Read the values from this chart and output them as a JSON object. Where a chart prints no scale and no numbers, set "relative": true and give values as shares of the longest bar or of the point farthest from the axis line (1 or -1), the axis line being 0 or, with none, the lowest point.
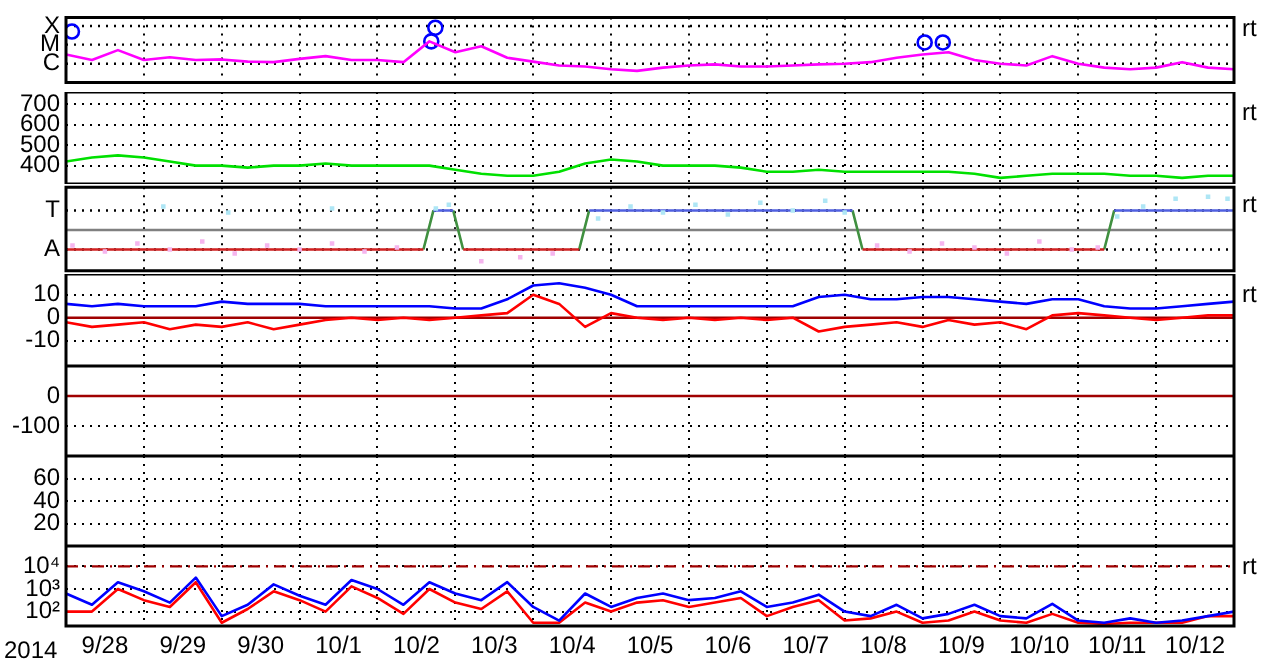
{
  "chart_data": [
    {
      "type": "line",
      "xlim": [
        "2014-09-28",
        "2014-10-13"
      ],
      "xticks": [
        {
          "value": "2014-09-28",
          "label": null
        },
        {
          "value": "2014-09-29",
          "label": null
        },
        {
          "value": "2014-09-30",
          "label": null
        },
        {
          "value": "2014-10-01",
          "label": null
        },
        {
          "value": "2014-10-02",
          "label": null
        },
        {
          "value": "2014-10-03",
          "label": null
        },
        {
          "value": "2014-10-04",
          "label": null
        },
        {
          "value": "2014-10-05",
          "label": null
        },
        {
          "value": "2014-10-06",
          "label": null
        },
        {
          "value": "2014-10-07",
          "label": null
        },
        {
          "value": "2014-10-08",
          "label": null
        },
        {
          "value": "2014-10-09",
          "label": null
        },
        {
          "value": "2014-10-10",
          "label": null
        },
        {
          "value": "2014-10-11",
          "label": null
        },
        {
          "value": "2014-10-12",
          "label": null
        },
        {
          "value": "2014-10-13",
          "label": null
        }
      ],
      "relative": true,
      "grid": "x",
      "tick_labels": "y",
      "annotations": [
        "rt"
      ],
      "ref_lines": [
        {
          "axis": "y",
          "value": 1.03,
          "label": "X",
          "color": "#000000",
          "line_style": "dotted"
        },
        {
          "axis": "y",
          "value": 0.69,
          "label": "M",
          "color": "#000000",
          "line_style": "dotted"
        },
        {
          "axis": "y",
          "value": 0.34,
          "label": "C",
          "color": "#000000",
          "line_style": "dotted"
        }
      ],
      "x": [
        "2014-09-28T00:00",
        "2014-09-28T08:00",
        "2014-09-28T16:00",
        "2014-09-29T00:00",
        "2014-09-29T08:00",
        "2014-09-29T16:00",
        "2014-09-30T00:00",
        "2014-09-30T08:00",
        "2014-09-30T16:00",
        "2014-10-01T00:00",
        "2014-10-01T08:00",
        "2014-10-01T16:00",
        "2014-10-02T00:00",
        "2014-10-02T08:00",
        "2014-10-02T16:00",
        "2014-10-03T00:00",
        "2014-10-03T08:00",
        "2014-10-03T16:00",
        "2014-10-04T00:00",
        "2014-10-04T08:00",
        "2014-10-04T16:00",
        "2014-10-05T00:00",
        "2014-10-05T08:00",
        "2014-10-05T16:00",
        "2014-10-06T00:00",
        "2014-10-06T08:00",
        "2014-10-06T16:00",
        "2014-10-07T00:00",
        "2014-10-07T08:00",
        "2014-10-07T16:00",
        "2014-10-08T00:00",
        "2014-10-08T08:00",
        "2014-10-08T16:00",
        "2014-10-09T00:00",
        "2014-10-09T08:00",
        "2014-10-09T16:00",
        "2014-10-10T00:00",
        "2014-10-10T08:00",
        "2014-10-10T16:00",
        "2014-10-11T00:00",
        "2014-10-11T08:00",
        "2014-10-11T16:00",
        "2014-10-12T00:00",
        "2014-10-12T08:00",
        "2014-10-12T16:00",
        "2014-10-13T00:00"
      ],
      "series": [
        {
          "type": "line",
          "color": "#ff00ff",
          "values": [
            0.51,
            0.41,
            0.59,
            0.41,
            0.46,
            0.41,
            0.42,
            0.38,
            0.37,
            0.43,
            0.48,
            0.41,
            0.41,
            0.37,
            0.75,
            0.55,
            0.66,
            0.45,
            0.38,
            0.31,
            0.29,
            0.24,
            0.21,
            0.27,
            0.31,
            0.33,
            0.29,
            0.29,
            0.31,
            0.33,
            0.34,
            0.37,
            0.45,
            0.51,
            0.55,
            0.41,
            0.34,
            0.31,
            0.48,
            0.34,
            0.27,
            0.24,
            0.27,
            0.37,
            0.27,
            0.24
          ]
        },
        {
          "type": "scatter",
          "color": "#0000ff",
          "marker": "circle",
          "x": [
            "2014-09-28T01:50",
            "2014-10-02T16:35",
            "2014-10-02T17:50",
            "2014-10-09T00:40",
            "2014-10-09T06:15"
          ],
          "values": [
            0.93,
            0.75,
            1,
            0.73,
            0.73
          ]
        }
      ]
    },
    {
      "type": "line",
      "xlim": [
        "2014-09-28",
        "2014-10-13"
      ],
      "xticks": [
        {
          "value": "2014-09-28",
          "label": null
        },
        {
          "value": "2014-09-29",
          "label": null
        },
        {
          "value": "2014-09-30",
          "label": null
        },
        {
          "value": "2014-10-01",
          "label": null
        },
        {
          "value": "2014-10-02",
          "label": null
        },
        {
          "value": "2014-10-03",
          "label": null
        },
        {
          "value": "2014-10-04",
          "label": null
        },
        {
          "value": "2014-10-05",
          "label": null
        },
        {
          "value": "2014-10-06",
          "label": null
        },
        {
          "value": "2014-10-07",
          "label": null
        },
        {
          "value": "2014-10-08",
          "label": null
        },
        {
          "value": "2014-10-09",
          "label": null
        },
        {
          "value": "2014-10-10",
          "label": null
        },
        {
          "value": "2014-10-11",
          "label": null
        },
        {
          "value": "2014-10-12",
          "label": null
        },
        {
          "value": "2014-10-13",
          "label": null
        }
      ],
      "ylim": [
        310,
        760
      ],
      "yticks": [
        700,
        600,
        500,
        400
      ],
      "grid": true,
      "tick_labels": "y",
      "annotations": [
        "rt"
      ],
      "x": [
        "2014-09-28T00:00",
        "2014-09-28T08:00",
        "2014-09-28T16:00",
        "2014-09-29T00:00",
        "2014-09-29T08:00",
        "2014-09-29T16:00",
        "2014-09-30T00:00",
        "2014-09-30T08:00",
        "2014-09-30T16:00",
        "2014-10-01T00:00",
        "2014-10-01T08:00",
        "2014-10-01T16:00",
        "2014-10-02T00:00",
        "2014-10-02T08:00",
        "2014-10-02T16:00",
        "2014-10-03T00:00",
        "2014-10-03T08:00",
        "2014-10-03T16:00",
        "2014-10-04T00:00",
        "2014-10-04T08:00",
        "2014-10-04T16:00",
        "2014-10-05T00:00",
        "2014-10-05T08:00",
        "2014-10-05T16:00",
        "2014-10-06T00:00",
        "2014-10-06T08:00",
        "2014-10-06T16:00",
        "2014-10-07T00:00",
        "2014-10-07T08:00",
        "2014-10-07T16:00",
        "2014-10-08T00:00",
        "2014-10-08T08:00",
        "2014-10-08T16:00",
        "2014-10-09T00:00",
        "2014-10-09T08:00",
        "2014-10-09T16:00",
        "2014-10-10T00:00",
        "2014-10-10T08:00",
        "2014-10-10T16:00",
        "2014-10-11T00:00",
        "2014-10-11T08:00",
        "2014-10-11T16:00",
        "2014-10-12T00:00",
        "2014-10-12T08:00",
        "2014-10-12T16:00",
        "2014-10-13T00:00"
      ],
      "series": [
        {
          "type": "line",
          "color": "#00e000",
          "values": [
            420,
            440,
            450,
            440,
            420,
            400,
            400,
            390,
            400,
            400,
            410,
            400,
            400,
            400,
            400,
            380,
            360,
            350,
            350,
            370,
            410,
            430,
            420,
            400,
            400,
            400,
            390,
            370,
            370,
            380,
            370,
            370,
            370,
            370,
            370,
            360,
            340,
            350,
            360,
            360,
            360,
            350,
            350,
            340,
            350,
            350
          ]
        }
      ]
    },
    {
      "type": "line",
      "xlim": [
        "2014-09-28",
        "2014-10-13"
      ],
      "xticks": [
        {
          "value": "2014-09-28",
          "label": null
        },
        {
          "value": "2014-09-29",
          "label": null
        },
        {
          "value": "2014-09-30",
          "label": null
        },
        {
          "value": "2014-10-01",
          "label": null
        },
        {
          "value": "2014-10-02",
          "label": null
        },
        {
          "value": "2014-10-03",
          "label": null
        },
        {
          "value": "2014-10-04",
          "label": null
        },
        {
          "value": "2014-10-05",
          "label": null
        },
        {
          "value": "2014-10-06",
          "label": null
        },
        {
          "value": "2014-10-07",
          "label": null
        },
        {
          "value": "2014-10-08",
          "label": null
        },
        {
          "value": "2014-10-09",
          "label": null
        },
        {
          "value": "2014-10-10",
          "label": null
        },
        {
          "value": "2014-10-11",
          "label": null
        },
        {
          "value": "2014-10-12",
          "label": null
        },
        {
          "value": "2014-10-13",
          "label": null
        }
      ],
      "relative": true,
      "grid": "x",
      "tick_labels": "y",
      "annotations": [
        "rt"
      ],
      "ref_lines": [
        {
          "axis": "y",
          "value": 0.59,
          "label": "T",
          "color": "#000000",
          "line_style": "dotted"
        },
        {
          "axis": "y",
          "value": -0.59,
          "label": "A",
          "color": "#000000",
          "line_style": "dotted"
        },
        {
          "axis": "y",
          "value": 0,
          "color": "#808080"
        }
      ],
      "series": [
        {
          "type": "scatter",
          "color": "#aee6f5",
          "marker": "square",
          "x": [
            "2014-09-29T06:00",
            "2014-09-30T02:00",
            "2014-10-01T10:00",
            "2014-10-02T18:00",
            "2014-10-02T22:00",
            "2014-10-04T20:00",
            "2014-10-05T06:00",
            "2014-10-05T16:00",
            "2014-10-06T02:00",
            "2014-10-06T12:00",
            "2014-10-06T22:00",
            "2014-10-07T08:00",
            "2014-10-07T18:00",
            "2014-10-08T00:00",
            "2014-10-11T12:00",
            "2014-10-11T20:00",
            "2014-10-12T06:00",
            "2014-10-12T16:00",
            "2014-10-12T22:00"
          ],
          "values": [
            0.71,
            0.53,
            0.65,
            0.65,
            0.76,
            0.35,
            0.71,
            0.53,
            0.76,
            0.47,
            0.82,
            0.59,
            0.88,
            0.53,
            0.41,
            0.71,
            0.94,
            1,
            0.94
          ]
        },
        {
          "type": "scatter",
          "color": "#f5b5ee",
          "marker": "square",
          "x": [
            "2014-09-28T02:00",
            "2014-09-28T12:00",
            "2014-09-28T22:00",
            "2014-09-29T08:00",
            "2014-09-29T18:00",
            "2014-09-30T04:00",
            "2014-09-30T14:00",
            "2014-10-01T00:00",
            "2014-10-01T10:00",
            "2014-10-01T20:00",
            "2014-10-02T06:00",
            "2014-10-03T08:00",
            "2014-10-03T20:00",
            "2014-10-04T06:00",
            "2014-10-08T10:00",
            "2014-10-08T20:00",
            "2014-10-09T06:00",
            "2014-10-09T16:00",
            "2014-10-10T02:00",
            "2014-10-10T12:00",
            "2014-10-10T22:00",
            "2014-10-11T06:00"
          ],
          "values": [
            -0.47,
            -0.65,
            -0.41,
            -0.59,
            -0.35,
            -0.71,
            -0.47,
            -0.59,
            -0.41,
            -0.65,
            -0.53,
            -0.94,
            -0.82,
            -0.71,
            -0.47,
            -0.65,
            -0.41,
            -0.53,
            -0.71,
            -0.35,
            -0.59,
            -0.53
          ]
        },
        {
          "type": "line",
          "color": "#d02020",
          "x": [
            "2014-09-28T00:00",
            "2014-10-02T14:10",
            "2014-10-02T20:00",
            "2014-10-03T02:25",
            "2014-10-04T14:10",
            "2014-10-06T00:00",
            "2014-10-08T05:30",
            "2014-10-11T08:00"
          ],
          "values": [
            -0.59,
            -0.59,
            null,
            -0.59,
            -0.59,
            null,
            -0.59,
            -0.59
          ]
        },
        {
          "type": "line",
          "color": "#5060e0",
          "x": [
            "2014-10-02T17:15",
            "2014-10-02T23:20",
            "2014-10-03T12:00",
            "2014-10-04T17:15",
            "2014-10-08T02:25",
            "2014-10-10T00:00",
            "2014-10-11T11:05",
            "2014-10-13T00:00"
          ],
          "values": [
            0.59,
            0.59,
            null,
            0.59,
            0.59,
            null,
            0.59,
            0.59
          ]
        },
        {
          "type": "line",
          "color": "#409040",
          "x": [
            "2014-10-02T14:10",
            "2014-10-02T17:15",
            "2014-10-02T20:00",
            "2014-10-02T23:20",
            "2014-10-03T02:25",
            "2014-10-03T12:00",
            "2014-10-04T14:10",
            "2014-10-04T17:15",
            "2014-10-06T00:00",
            "2014-10-08T02:25",
            "2014-10-08T05:30",
            "2014-10-09T00:00",
            "2014-10-11T08:00",
            "2014-10-11T11:05"
          ],
          "values": [
            -0.59,
            0.59,
            null,
            0.59,
            -0.59,
            null,
            -0.59,
            0.59,
            null,
            0.59,
            -0.59,
            null,
            -0.59,
            0.59
          ]
        }
      ]
    },
    {
      "type": "line",
      "xlim": [
        "2014-09-28",
        "2014-10-13"
      ],
      "xticks": [
        {
          "value": "2014-09-28",
          "label": null
        },
        {
          "value": "2014-09-29",
          "label": null
        },
        {
          "value": "2014-09-30",
          "label": null
        },
        {
          "value": "2014-10-01",
          "label": null
        },
        {
          "value": "2014-10-02",
          "label": null
        },
        {
          "value": "2014-10-03",
          "label": null
        },
        {
          "value": "2014-10-04",
          "label": null
        },
        {
          "value": "2014-10-05",
          "label": null
        },
        {
          "value": "2014-10-06",
          "label": null
        },
        {
          "value": "2014-10-07",
          "label": null
        },
        {
          "value": "2014-10-08",
          "label": null
        },
        {
          "value": "2014-10-09",
          "label": null
        },
        {
          "value": "2014-10-10",
          "label": null
        },
        {
          "value": "2014-10-11",
          "label": null
        },
        {
          "value": "2014-10-12",
          "label": null
        },
        {
          "value": "2014-10-13",
          "label": null
        }
      ],
      "ylim": [
        -21,
        19
      ],
      "yticks": [
        10,
        0,
        -10
      ],
      "grid": true,
      "tick_labels": "y",
      "annotations": [
        "rt"
      ],
      "ref_lines": [
        {
          "axis": "y",
          "value": 0,
          "color": "#a00000"
        }
      ],
      "x": [
        "2014-09-28T00:00",
        "2014-09-28T08:00",
        "2014-09-28T16:00",
        "2014-09-29T00:00",
        "2014-09-29T08:00",
        "2014-09-29T16:00",
        "2014-09-30T00:00",
        "2014-09-30T08:00",
        "2014-09-30T16:00",
        "2014-10-01T00:00",
        "2014-10-01T08:00",
        "2014-10-01T16:00",
        "2014-10-02T00:00",
        "2014-10-02T08:00",
        "2014-10-02T16:00",
        "2014-10-03T00:00",
        "2014-10-03T08:00",
        "2014-10-03T16:00",
        "2014-10-04T00:00",
        "2014-10-04T08:00",
        "2014-10-04T16:00",
        "2014-10-05T00:00",
        "2014-10-05T08:00",
        "2014-10-05T16:00",
        "2014-10-06T00:00",
        "2014-10-06T08:00",
        "2014-10-06T16:00",
        "2014-10-07T00:00",
        "2014-10-07T08:00",
        "2014-10-07T16:00",
        "2014-10-08T00:00",
        "2014-10-08T08:00",
        "2014-10-08T16:00",
        "2014-10-09T00:00",
        "2014-10-09T08:00",
        "2014-10-09T16:00",
        "2014-10-10T00:00",
        "2014-10-10T08:00",
        "2014-10-10T16:00",
        "2014-10-11T00:00",
        "2014-10-11T08:00",
        "2014-10-11T16:00",
        "2014-10-12T00:00",
        "2014-10-12T08:00",
        "2014-10-12T16:00",
        "2014-10-13T00:00"
      ],
      "series": [
        {
          "type": "line",
          "color": "#0000ff",
          "values": [
            6,
            5,
            6,
            5,
            5,
            5,
            7,
            6,
            6,
            6,
            5,
            5,
            5,
            5,
            5,
            4,
            4,
            8,
            14,
            15,
            13,
            10,
            5,
            5,
            5,
            5,
            5,
            5,
            5,
            9,
            10,
            8,
            8,
            9,
            9,
            8,
            7,
            6,
            8,
            8,
            5,
            4,
            4,
            5,
            6,
            7
          ]
        },
        {
          "type": "line",
          "color": "#ff0000",
          "values": [
            -2,
            -4,
            -3,
            -2,
            -5,
            -3,
            -4,
            -2,
            -5,
            -3,
            -1,
            0,
            -1,
            0,
            -1,
            0,
            1,
            2,
            10,
            6,
            -4,
            2,
            0,
            -1,
            0,
            -1,
            0,
            -1,
            0,
            -6,
            -4,
            -3,
            -2,
            -4,
            -1,
            -3,
            -2,
            -5,
            1,
            2,
            1,
            0,
            -1,
            0,
            1,
            1
          ]
        }
      ]
    },
    {
      "type": "line",
      "xlim": [
        "2014-09-28",
        "2014-10-13"
      ],
      "xticks": [
        {
          "value": "2014-09-28",
          "label": null
        },
        {
          "value": "2014-09-29",
          "label": null
        },
        {
          "value": "2014-09-30",
          "label": null
        },
        {
          "value": "2014-10-01",
          "label": null
        },
        {
          "value": "2014-10-02",
          "label": null
        },
        {
          "value": "2014-10-03",
          "label": null
        },
        {
          "value": "2014-10-04",
          "label": null
        },
        {
          "value": "2014-10-05",
          "label": null
        },
        {
          "value": "2014-10-06",
          "label": null
        },
        {
          "value": "2014-10-07",
          "label": null
        },
        {
          "value": "2014-10-08",
          "label": null
        },
        {
          "value": "2014-10-09",
          "label": null
        },
        {
          "value": "2014-10-10",
          "label": null
        },
        {
          "value": "2014-10-11",
          "label": null
        },
        {
          "value": "2014-10-12",
          "label": null
        },
        {
          "value": "2014-10-13",
          "label": null
        }
      ],
      "ylim": [
        -200,
        100
      ],
      "yticks": [
        0,
        -100
      ],
      "grid": true,
      "tick_labels": "y",
      "ref_lines": [
        {
          "axis": "y",
          "value": 0,
          "color": "#a00000"
        }
      ]
    },
    {
      "type": "line",
      "xlim": [
        "2014-09-28",
        "2014-10-13"
      ],
      "xticks": [
        {
          "value": "2014-09-28",
          "label": null
        },
        {
          "value": "2014-09-29",
          "label": null
        },
        {
          "value": "2014-09-30",
          "label": null
        },
        {
          "value": "2014-10-01",
          "label": null
        },
        {
          "value": "2014-10-02",
          "label": null
        },
        {
          "value": "2014-10-03",
          "label": null
        },
        {
          "value": "2014-10-04",
          "label": null
        },
        {
          "value": "2014-10-05",
          "label": null
        },
        {
          "value": "2014-10-06",
          "label": null
        },
        {
          "value": "2014-10-07",
          "label": null
        },
        {
          "value": "2014-10-08",
          "label": null
        },
        {
          "value": "2014-10-09",
          "label": null
        },
        {
          "value": "2014-10-10",
          "label": null
        },
        {
          "value": "2014-10-11",
          "label": null
        },
        {
          "value": "2014-10-12",
          "label": null
        },
        {
          "value": "2014-10-13",
          "label": null
        }
      ],
      "ylim": [
        0,
        80
      ],
      "yticks": [
        60,
        40,
        20
      ],
      "grid": true,
      "tick_labels": "y"
    },
    {
      "type": "line",
      "xlabel": "2014",
      "xlim": [
        "2014-09-28",
        "2014-10-13"
      ],
      "xticks": [
        {
          "value": "2014-09-28",
          "label": null
        },
        {
          "value": "2014-09-28T12:00",
          "label": "9/28"
        },
        {
          "value": "2014-09-29",
          "label": null
        },
        {
          "value": "2014-09-29T12:00",
          "label": "9/29"
        },
        {
          "value": "2014-09-30",
          "label": null
        },
        {
          "value": "2014-09-30T12:00",
          "label": "9/30"
        },
        {
          "value": "2014-10-01",
          "label": null
        },
        {
          "value": "2014-10-01T12:00",
          "label": "10/1"
        },
        {
          "value": "2014-10-02",
          "label": null
        },
        {
          "value": "2014-10-02T12:00",
          "label": "10/2"
        },
        {
          "value": "2014-10-03",
          "label": null
        },
        {
          "value": "2014-10-03T12:00",
          "label": "10/3"
        },
        {
          "value": "2014-10-04",
          "label": null
        },
        {
          "value": "2014-10-04T12:00",
          "label": "10/4"
        },
        {
          "value": "2014-10-05",
          "label": null
        },
        {
          "value": "2014-10-05T12:00",
          "label": "10/5"
        },
        {
          "value": "2014-10-06",
          "label": null
        },
        {
          "value": "2014-10-06T12:00",
          "label": "10/6"
        },
        {
          "value": "2014-10-07",
          "label": null
        },
        {
          "value": "2014-10-07T12:00",
          "label": "10/7"
        },
        {
          "value": "2014-10-08",
          "label": null
        },
        {
          "value": "2014-10-08T12:00",
          "label": "10/8"
        },
        {
          "value": "2014-10-09",
          "label": null
        },
        {
          "value": "2014-10-09T12:00",
          "label": "10/9"
        },
        {
          "value": "2014-10-10",
          "label": null
        },
        {
          "value": "2014-10-10T12:00",
          "label": "10/10"
        },
        {
          "value": "2014-10-11",
          "label": null
        },
        {
          "value": "2014-10-11T12:00",
          "label": "10/11"
        },
        {
          "value": "2014-10-12",
          "label": null
        },
        {
          "value": "2014-10-12T12:00",
          "label": "10/12"
        },
        {
          "value": "2014-10-13",
          "label": null
        }
      ],
      "log": "y",
      "ylim": [
        23,
        80000
      ],
      "yticks": [
        {
          "value": 10000,
          "label": "10⁴"
        },
        {
          "value": 1000,
          "label": "10³"
        },
        {
          "value": 100,
          "label": "10²"
        }
      ],
      "grid": true,
      "annotations": [
        "rt"
      ],
      "ref_lines": [
        {
          "axis": "y",
          "value": 10000,
          "color": "#a00000",
          "line_style": "dashed"
        }
      ],
      "x": [
        "2014-09-28T00:00",
        "2014-09-28T08:00",
        "2014-09-28T16:00",
        "2014-09-29T00:00",
        "2014-09-29T08:00",
        "2014-09-29T16:00",
        "2014-09-30T00:00",
        "2014-09-30T08:00",
        "2014-09-30T16:00",
        "2014-10-01T00:00",
        "2014-10-01T08:00",
        "2014-10-01T16:00",
        "2014-10-02T00:00",
        "2014-10-02T08:00",
        "2014-10-02T16:00",
        "2014-10-03T00:00",
        "2014-10-03T08:00",
        "2014-10-03T16:00",
        "2014-10-04T00:00",
        "2014-10-04T08:00",
        "2014-10-04T16:00",
        "2014-10-05T00:00",
        "2014-10-05T08:00",
        "2014-10-05T16:00",
        "2014-10-06T00:00",
        "2014-10-06T08:00",
        "2014-10-06T16:00",
        "2014-10-07T00:00",
        "2014-10-07T08:00",
        "2014-10-07T16:00",
        "2014-10-08T00:00",
        "2014-10-08T08:00",
        "2014-10-08T16:00",
        "2014-10-09T00:00",
        "2014-10-09T08:00",
        "2014-10-09T16:00",
        "2014-10-10T00:00",
        "2014-10-10T08:00",
        "2014-10-10T16:00",
        "2014-10-11T00:00",
        "2014-10-11T08:00",
        "2014-10-11T16:00",
        "2014-10-12T00:00",
        "2014-10-12T08:00",
        "2014-10-12T16:00",
        "2014-10-13T00:00"
      ],
      "series": [
        {
          "type": "line",
          "color": "#0000ff",
          "values": [
            630,
            200,
            2000,
            790,
            250,
            3200,
            63,
            200,
            1600,
            500,
            200,
            2500,
            1000,
            200,
            2000,
            630,
            320,
            2000,
            160,
            40,
            630,
            160,
            400,
            630,
            320,
            400,
            790,
            160,
            250,
            560,
            100,
            63,
            200,
            50,
            79,
            200,
            63,
            50,
            220,
            40,
            32,
            50,
            32,
            40,
            63,
            100
          ]
        },
        {
          "type": "line",
          "color": "#ff0000",
          "values": [
            100,
            100,
            1000,
            320,
            160,
            2000,
            32,
            130,
            790,
            320,
            100,
            1300,
            400,
            79,
            1000,
            250,
            130,
            790,
            32,
            32,
            250,
            100,
            250,
            320,
            160,
            250,
            400,
            63,
            160,
            320,
            40,
            50,
            100,
            32,
            40,
            100,
            40,
            32,
            79,
            32,
            28,
            32,
            32,
            32,
            63,
            63
          ]
        }
      ]
    }
  ]
}
